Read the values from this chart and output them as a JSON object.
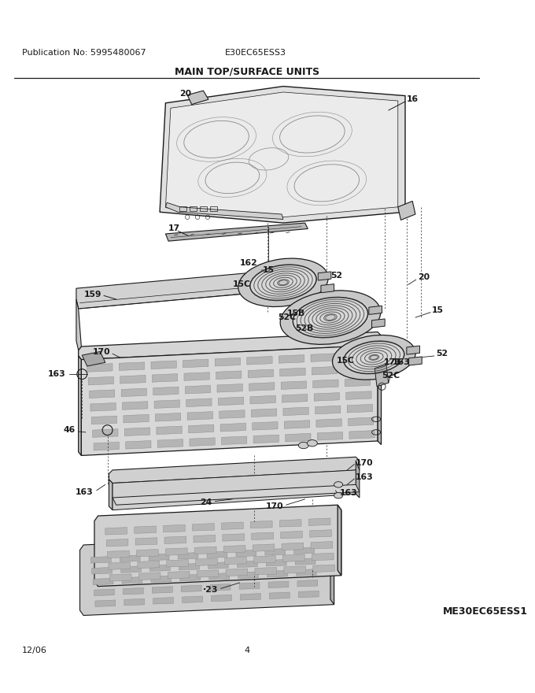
{
  "title": "MAIN TOP/SURFACE UNITS",
  "pub_no": "Publication No: 5995480067",
  "model": "E30EC65ESS3",
  "page": "4",
  "date": "12/06",
  "model2": "ME30EC65ESS1",
  "bg_color": "#ffffff",
  "line_color": "#1a1a1a",
  "text_color": "#1a1a1a",
  "figsize": [
    6.8,
    8.8
  ],
  "dpi": 100
}
